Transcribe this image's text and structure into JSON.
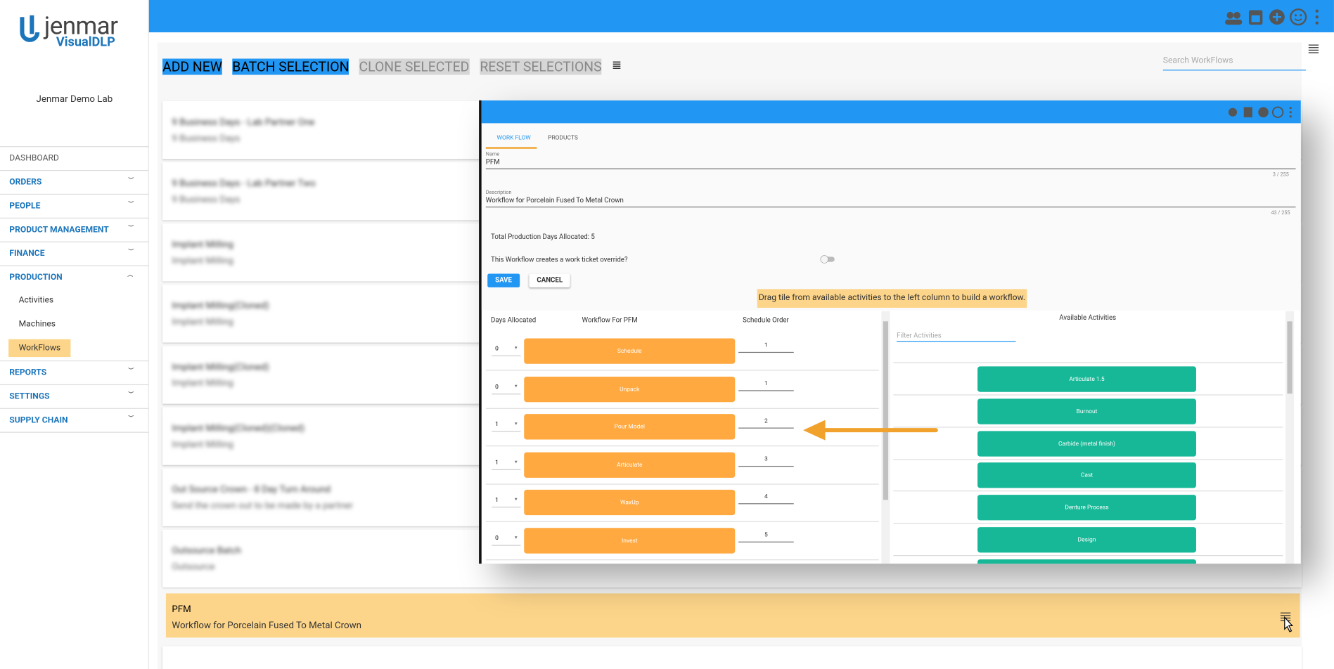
{
  "app": {
    "logo": "jenmar",
    "logo_sub": "VisualDLP",
    "lab": "Jenmar Demo Lab"
  },
  "nav": [
    {
      "label": "DASHBOARD",
      "kind": "plain"
    },
    {
      "label": "ORDERS",
      "kind": "section"
    },
    {
      "label": "PEOPLE",
      "kind": "section"
    },
    {
      "label": "PRODUCT MANAGEMENT",
      "kind": "section"
    },
    {
      "label": "FINANCE",
      "kind": "section"
    },
    {
      "label": "PRODUCTION",
      "kind": "open"
    },
    {
      "label": "Activities",
      "kind": "sub"
    },
    {
      "label": "Machines",
      "kind": "sub"
    },
    {
      "label": "WorkFlows",
      "kind": "active"
    },
    {
      "label": "REPORTS",
      "kind": "section"
    },
    {
      "label": "SETTINGS",
      "kind": "section"
    },
    {
      "label": "SUPPLY CHAIN",
      "kind": "section"
    }
  ],
  "toolbar": {
    "buttons": [
      "ADD NEW",
      "BATCH SELECTION",
      "CLONE SELECTED",
      "RESET SELECTIONS"
    ],
    "search": "Search WorkFlows"
  },
  "workflows": [
    {
      "title": "9 Business Days - Lab Partner One",
      "desc": "9 Business Days"
    },
    {
      "title": "9 Business Days - Lab Partner Two",
      "desc": "9 Business Days"
    },
    {
      "title": "Implant Milling",
      "desc": "Implant Milling"
    },
    {
      "title": "Implant Milling(Cloned)",
      "desc": "Implant Milling"
    },
    {
      "title": "Implant Milling(Cloned)",
      "desc": "Implant Milling"
    },
    {
      "title": "Implant Milling(Cloned)(Cloned)",
      "desc": "Implant Milling"
    },
    {
      "title": "Out Source Crown - 8 Day Turn Around",
      "desc": "Send the crown out to be made by a partner"
    },
    {
      "title": "Outsource Batch",
      "desc": "Outsource"
    }
  ],
  "selected": {
    "title": "PFM",
    "desc": "Workflow for Porcelain Fused To Metal Crown"
  },
  "modal": {
    "tabs": [
      "WORK FLOW",
      "PRODUCTS"
    ],
    "name_label": "Name",
    "name": "PFM",
    "name_count": "3 / 255",
    "desc_label": "Description",
    "desc": "Workflow for Porcelain Fused To Metal Crown",
    "desc_count": "43 / 255",
    "total": "Total Production Days Allocated: 5",
    "override": "This Workflow creates a work ticket override?",
    "save": "SAVE",
    "cancel": "CANCEL",
    "hint": "Drag tile from available activities to the left column to build a workflow.",
    "headers": [
      "Days Allocated",
      "Workflow For PFM",
      "Schedule Order"
    ],
    "rows": [
      {
        "days": "0",
        "name": "Schedule",
        "order": "1"
      },
      {
        "days": "0",
        "name": "Unpack",
        "order": "1"
      },
      {
        "days": "1",
        "name": "Pour Model",
        "order": "2"
      },
      {
        "days": "1",
        "name": "Articulate",
        "order": "3"
      },
      {
        "days": "1",
        "name": "WaxUp",
        "order": "4"
      },
      {
        "days": "0",
        "name": "Invest",
        "order": "5"
      }
    ],
    "available_title": "Available Activities",
    "filter": "Filter Activities",
    "activities": [
      "Articulate 1.5",
      "Burnout",
      "Carbide (metal finish)",
      "Cast",
      "Denture Process",
      "Design"
    ]
  }
}
